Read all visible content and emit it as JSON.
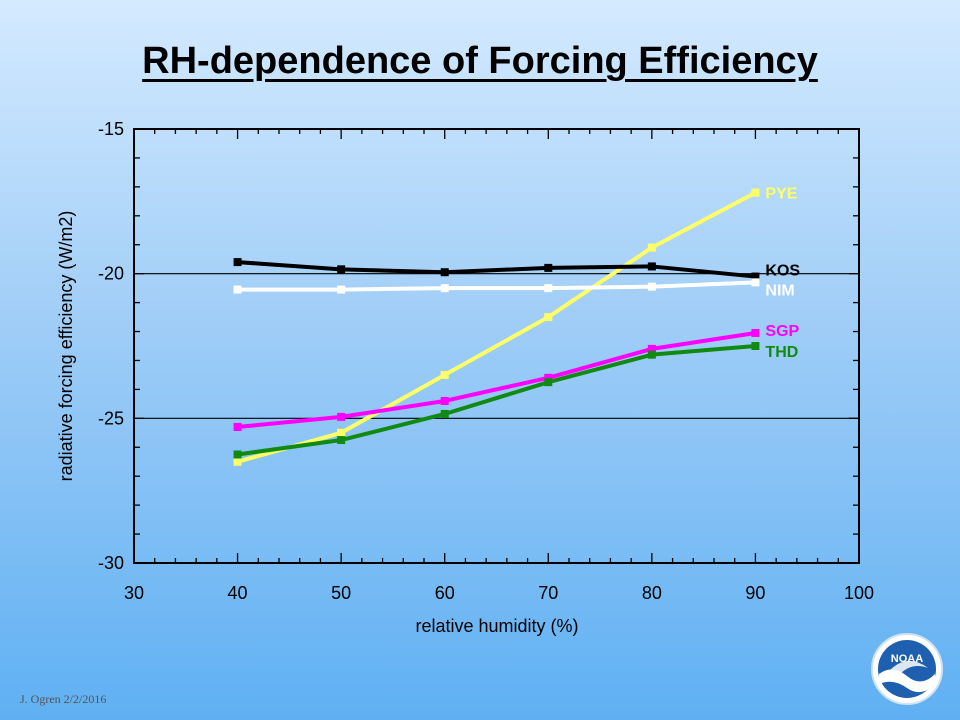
{
  "title": "RH-dependence of Forcing Efficiency",
  "footer": "J. Ogren  2/2/2016",
  "logo_text": "NOAA",
  "chart_data": {
    "type": "line",
    "xlabel": "relative humidity (%)",
    "ylabel": "radiative forcing efficiency (W/m2)",
    "xlim": [
      30,
      100
    ],
    "ylim": [
      -30,
      -15
    ],
    "xticks": [
      30,
      40,
      50,
      60,
      70,
      80,
      90,
      100
    ],
    "yticks": [
      -15,
      -20,
      -25,
      -30
    ],
    "reference_lines_y": [
      -20,
      -25
    ],
    "x": [
      40,
      50,
      60,
      70,
      80,
      90
    ],
    "series": [
      {
        "name": "PYE",
        "color": "#ffff66",
        "values": [
          -26.5,
          -25.5,
          -23.5,
          -21.5,
          -19.1,
          -17.2
        ]
      },
      {
        "name": "KOS",
        "color": "#000000",
        "values": [
          -19.6,
          -19.85,
          -19.95,
          -19.8,
          -19.75,
          -20.1
        ]
      },
      {
        "name": "NIM",
        "color": "#ffffff",
        "values": [
          -20.55,
          -20.55,
          -20.5,
          -20.5,
          -20.45,
          -20.3
        ]
      },
      {
        "name": "SGP",
        "color": "#ff00ff",
        "values": [
          -25.3,
          -24.95,
          -24.4,
          -23.6,
          -22.6,
          -22.05
        ]
      },
      {
        "name": "THD",
        "color": "#118a11",
        "values": [
          -26.25,
          -25.75,
          -24.85,
          -23.75,
          -22.8,
          -22.5
        ]
      }
    ]
  }
}
